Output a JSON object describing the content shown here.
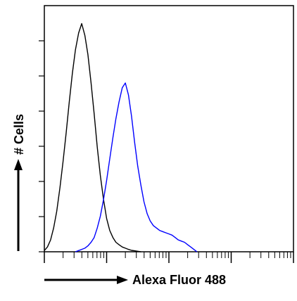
{
  "chart_data": {
    "type": "line",
    "title": "",
    "xlabel": "Alexa Fluor 488",
    "ylabel": "# Cells",
    "x_scale": "log",
    "xlim": [
      1,
      10000
    ],
    "ylim": [
      0,
      100
    ],
    "grid": false,
    "legend": "none",
    "x_tick_labels": [],
    "y_tick_labels": [],
    "colors": {
      "axis": "#000000",
      "control": "#000000",
      "stained": "#0000ff"
    },
    "series": [
      {
        "color": "#000000",
        "x": [
          1,
          1.12,
          1.26,
          1.41,
          1.58,
          1.78,
          2,
          2.24,
          2.51,
          2.82,
          3.16,
          3.55,
          3.98,
          4.47,
          5.01,
          5.62,
          6.31,
          7.08,
          7.94,
          8.91,
          10,
          11.2,
          12.6,
          14.1,
          15.8,
          17.8,
          20,
          22.4,
          25.1,
          28.2,
          31.6,
          35.5
        ],
        "y": [
          0.5,
          2,
          5,
          10,
          17,
          27,
          38,
          50,
          63,
          75,
          85,
          92,
          96,
          91,
          83,
          71,
          58,
          44,
          32,
          22,
          14,
          9,
          6,
          4,
          3,
          2,
          1.5,
          1,
          0.6,
          0.4,
          0.2,
          0
        ]
      },
      {
        "color": "#0000ff",
        "x": [
          3.16,
          3.55,
          3.98,
          4.47,
          5.01,
          5.62,
          6.31,
          7.08,
          7.94,
          8.91,
          10,
          11.2,
          12.6,
          14.1,
          15.8,
          17.8,
          20,
          22.4,
          25.1,
          28.2,
          31.6,
          35.5,
          39.8,
          44.7,
          50.1,
          56.2,
          63.1,
          70.8,
          79.4,
          89.1,
          100,
          112,
          126,
          141,
          158,
          178,
          200,
          224,
          251,
          282
        ],
        "y": [
          0,
          0.5,
          1,
          1.5,
          2.5,
          4,
          6,
          10,
          15,
          22,
          30,
          39,
          48,
          56,
          63,
          69,
          71,
          66,
          57,
          46,
          36,
          28,
          21,
          16,
          13,
          11,
          10,
          9,
          8.5,
          8,
          7.5,
          7,
          6,
          5,
          4.5,
          4,
          3,
          2,
          1,
          0
        ]
      }
    ]
  }
}
